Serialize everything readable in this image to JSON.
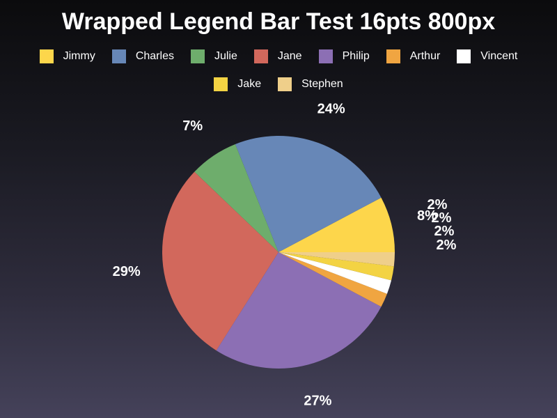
{
  "chart_data": {
    "type": "pie",
    "title": "Wrapped Legend Bar Test 16pts 800px",
    "legend_placement": "top",
    "slices": [
      {
        "name": "Jimmy",
        "value": 8,
        "label": "8%",
        "color": "#fdd64b"
      },
      {
        "name": "Charles",
        "value": 24,
        "label": "24%",
        "color": "#6787b7"
      },
      {
        "name": "Julie",
        "value": 7,
        "label": "7%",
        "color": "#6ead6c"
      },
      {
        "name": "Jane",
        "value": 29,
        "label": "29%",
        "color": "#d2685c"
      },
      {
        "name": "Philip",
        "value": 27,
        "label": "27%",
        "color": "#8c6fb4"
      },
      {
        "name": "Arthur",
        "value": 2,
        "label": "2%",
        "color": "#f0a541"
      },
      {
        "name": "Vincent",
        "value": 2,
        "label": "2%",
        "color": "#ffffff"
      },
      {
        "name": "Jake",
        "value": 2,
        "label": "2%",
        "color": "#f3d343"
      },
      {
        "name": "Stephen",
        "value": 2,
        "label": "2%",
        "color": "#efcf8a"
      }
    ]
  }
}
